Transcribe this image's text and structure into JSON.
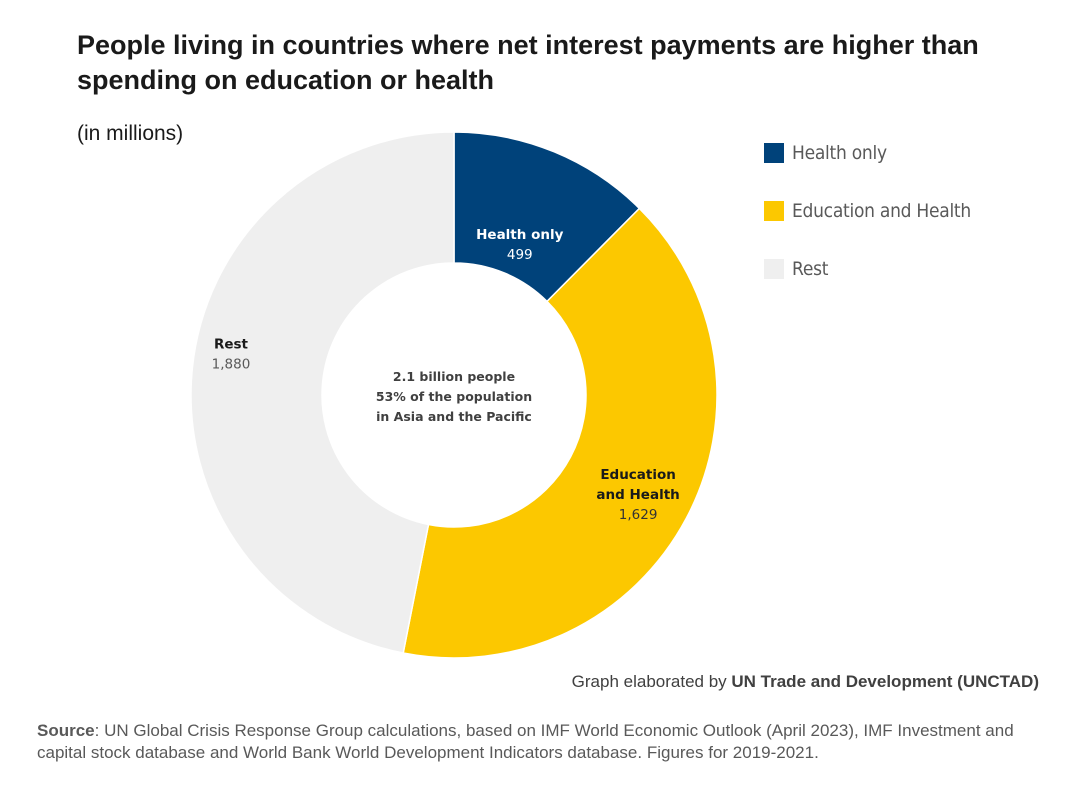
{
  "title": "People living in countries where net interest payments are higher than spending on education or health",
  "subtitle": "(in millions)",
  "center_text": [
    "2.1 billion people",
    "53% of the population",
    "in Asia and the Pacific"
  ],
  "legend": [
    {
      "label": "Health only",
      "color": "#00427a"
    },
    {
      "label": "Education and Health",
      "color": "#fcc800"
    },
    {
      "label": "Rest",
      "color": "#efefef"
    }
  ],
  "credit": {
    "prefix": "Graph elaborated by ",
    "org": "UN Trade and Development (UNCTAD)"
  },
  "source": {
    "label": "Source",
    "text": ": UN Global Crisis Response Group calculations, based on IMF World Economic Outlook (April 2023), IMF Investment and capital stock database and World Bank World Development Indicators database. Figures for 2019-2021."
  },
  "chart_data": {
    "type": "pie",
    "variant": "donut",
    "unit": "millions",
    "categories": [
      "Health only",
      "Education and Health",
      "Rest"
    ],
    "values": [
      499,
      1629,
      1880
    ],
    "value_labels": [
      "499",
      "1,629",
      "1,880"
    ],
    "slice_labels": [
      [
        "Health only"
      ],
      [
        "Education",
        "and Health"
      ],
      [
        "Rest"
      ]
    ],
    "colors": [
      "#00427a",
      "#fcc800",
      "#efefef"
    ],
    "label_colors": [
      "#ffffff",
      "#1a1a1a",
      "#1a1a1a"
    ],
    "value_colors": [
      "#ffffff",
      "#333333",
      "#595959"
    ],
    "legend_position": "right"
  }
}
